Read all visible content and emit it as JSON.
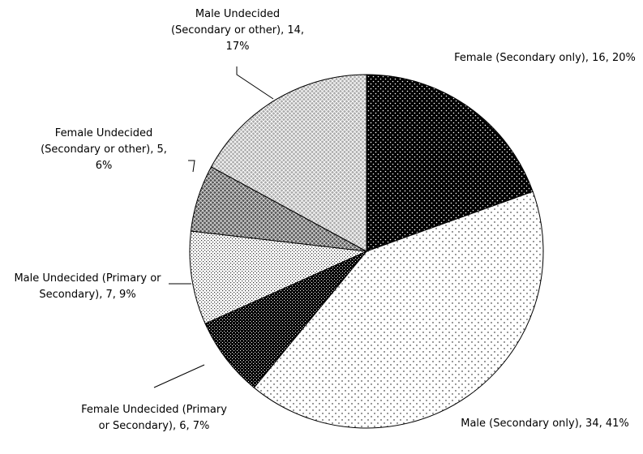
{
  "chart_data": {
    "type": "pie",
    "labels": [
      "Female (Secondary only), 16, 20%",
      "Male (Secondary only), 34, 41%",
      "Female Undecided (Primary or Secondary), 6, 7%",
      "Male Undecided (Primary or Secondary), 7, 9%",
      "Female Undecided (Secondary or other), 5, 6%",
      "Male Undecided (Secondary or other), 14, 17%"
    ],
    "values": [
      16,
      34,
      6,
      7,
      5,
      14
    ]
  }
}
